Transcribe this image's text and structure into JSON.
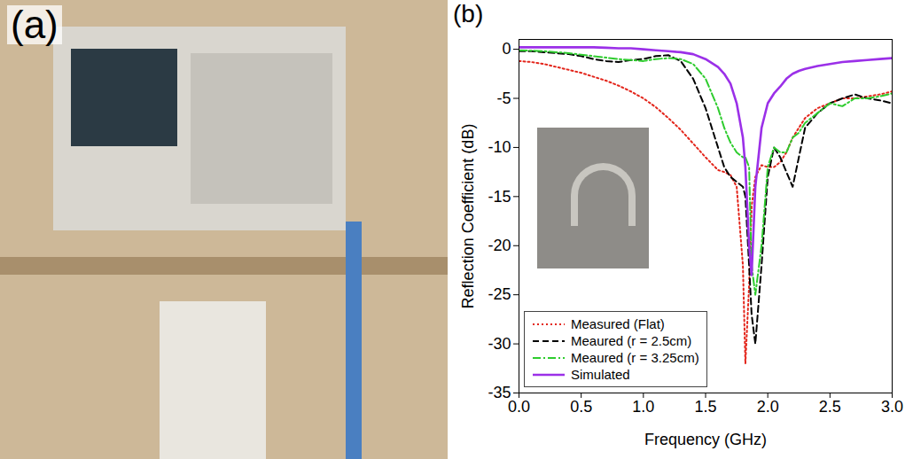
{
  "photo": {
    "label": "(a)"
  },
  "chart_data": {
    "type": "line",
    "annotations": [
      "(b)"
    ],
    "xlabel": "Frequency (GHz)",
    "ylabel": "Reflection Coefficient (dB)",
    "x": [
      0,
      0.1,
      0.2,
      0.3,
      0.4,
      0.5,
      0.6,
      0.7,
      0.8,
      0.9,
      1.0,
      1.1,
      1.2,
      1.3,
      1.4,
      1.5,
      1.6,
      1.65,
      1.7,
      1.75,
      1.8,
      1.82,
      1.85,
      1.87,
      1.9,
      1.95,
      2.0,
      2.05,
      2.1,
      2.15,
      2.2,
      2.25,
      2.3,
      2.4,
      2.5,
      2.6,
      2.7,
      2.8,
      2.9,
      3.0
    ],
    "xlim": [
      0,
      3
    ],
    "xticks": [
      {
        "value": 0,
        "label": "0.0"
      },
      0.5,
      {
        "value": 1,
        "label": "1.0"
      },
      1.5,
      {
        "value": 2,
        "label": "2.0"
      },
      2.5,
      {
        "value": 3,
        "label": "3.0"
      }
    ],
    "ylim": [
      -35,
      1
    ],
    "yticks": [
      -35,
      -30,
      -25,
      -20,
      -15,
      -10,
      -5,
      0
    ],
    "grid": false,
    "legend": "lower left",
    "series": [
      {
        "name": "Measured (Flat)",
        "color": "#e3251b",
        "line_style": "dotted",
        "values": [
          -1.2,
          -1.3,
          -1.5,
          -1.8,
          -2.1,
          -2.4,
          -2.8,
          -3.2,
          -3.7,
          -4.3,
          -5,
          -5.9,
          -7,
          -8.2,
          -9.6,
          -11,
          -12.3,
          -12.5,
          -12.8,
          -14,
          -22,
          -32,
          -24,
          -16,
          -13,
          -11.8,
          -12,
          -12,
          -11.5,
          -10.5,
          -9,
          -8,
          -7,
          -6,
          -5.5,
          -5,
          -5,
          -4.8,
          -4.6,
          -4.3
        ]
      },
      {
        "name": "Meaured (r = 2.5cm)",
        "color": "#000000",
        "line_style": "dashed",
        "values": [
          -0.2,
          -0.2,
          -0.3,
          -0.4,
          -0.5,
          -0.7,
          -1.0,
          -1.2,
          -1.3,
          -1.1,
          -1,
          -0.7,
          -0.6,
          -1.2,
          -3,
          -6,
          -10,
          -12,
          -13,
          -13.5,
          -14,
          -15,
          -22,
          -27,
          -30,
          -22,
          -13,
          -10,
          -11,
          -12.5,
          -14,
          -11,
          -8,
          -6.5,
          -5.5,
          -5,
          -4.6,
          -5,
          -5.2,
          -5.5
        ]
      },
      {
        "name": "Meaured (r = 3.25cm)",
        "color": "#2ecc2e",
        "line_style": "dashdot",
        "values": [
          -0.1,
          -0.15,
          -0.2,
          -0.3,
          -0.4,
          -0.55,
          -0.7,
          -0.85,
          -1.0,
          -1.1,
          -1.2,
          -1.0,
          -0.9,
          -1.0,
          -1.5,
          -3,
          -6,
          -8,
          -9.5,
          -10.5,
          -11,
          -11,
          -12,
          -22,
          -25,
          -20,
          -12,
          -10,
          -10.5,
          -10.5,
          -9,
          -8.5,
          -7.5,
          -6.5,
          -5.5,
          -5.8,
          -5,
          -5,
          -4.8,
          -4.5
        ]
      },
      {
        "name": "Simulated",
        "color": "#9b30e8",
        "line_style": "solid",
        "values": [
          0.2,
          0.2,
          0.2,
          0.2,
          0.2,
          0.2,
          0.2,
          0.15,
          0.1,
          0.1,
          0,
          -0.1,
          -0.2,
          -0.3,
          -0.5,
          -1.0,
          -1.8,
          -2.5,
          -3.5,
          -5.5,
          -9,
          -12,
          -20,
          -23,
          -14,
          -8,
          -5.5,
          -4.5,
          -3.8,
          -3,
          -2.5,
          -2.2,
          -2,
          -1.7,
          -1.5,
          -1.3,
          -1.2,
          -1.1,
          -1.0,
          -0.9
        ]
      }
    ]
  }
}
